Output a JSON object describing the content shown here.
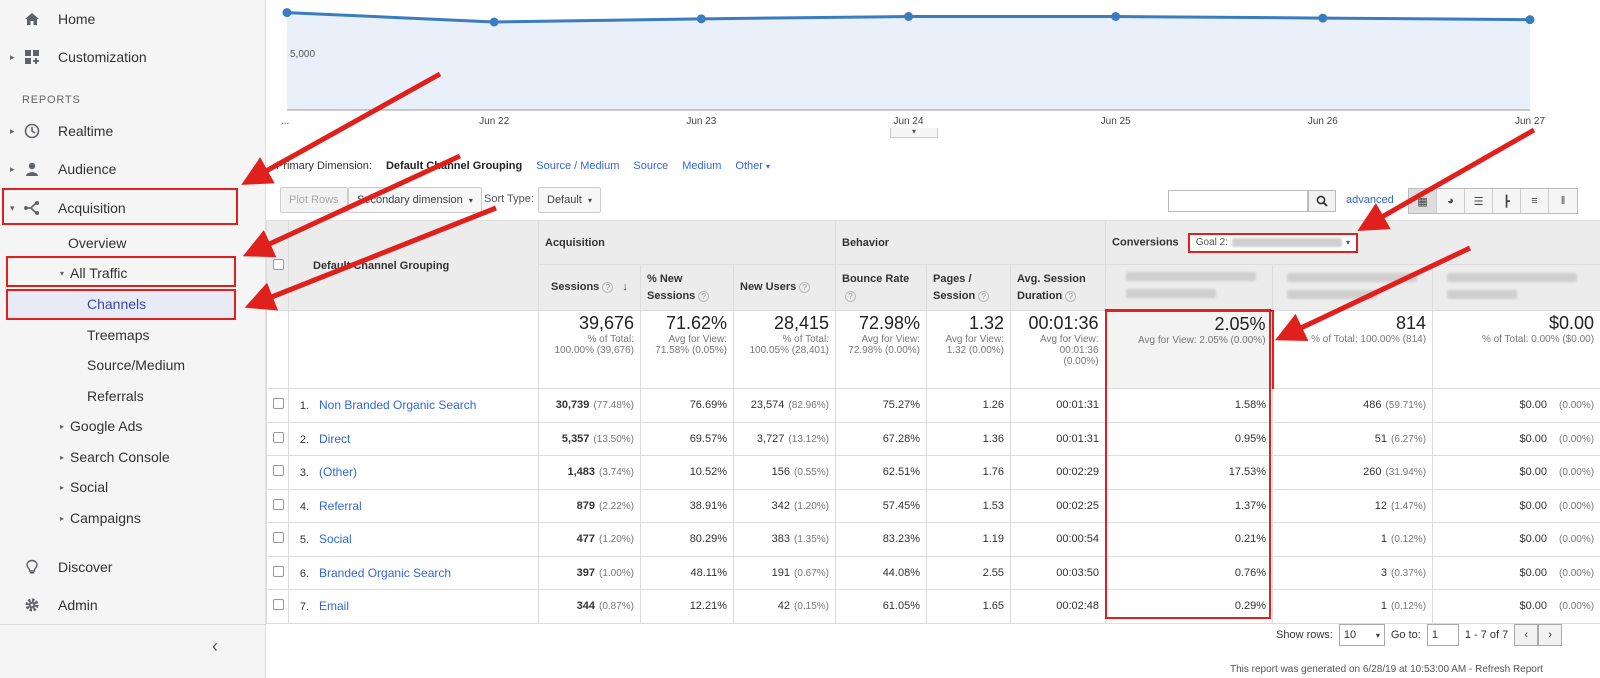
{
  "sidebar": {
    "home": "Home",
    "customization": "Customization",
    "reports_label": "REPORTS",
    "realtime": "Realtime",
    "audience": "Audience",
    "acquisition": "Acquisition",
    "overview": "Overview",
    "all_traffic": "All Traffic",
    "channels": "Channels",
    "treemaps": "Treemaps",
    "source_medium": "Source/Medium",
    "referrals": "Referrals",
    "google_ads": "Google Ads",
    "search_console": "Search Console",
    "social": "Social",
    "campaigns": "Campaigns",
    "discover": "Discover",
    "admin": "Admin"
  },
  "chart_data": {
    "type": "area",
    "x": [
      "...",
      "Jun 22",
      "Jun 23",
      "Jun 24",
      "Jun 25",
      "Jun 26",
      "Jun 27"
    ],
    "series": [
      {
        "values": [
          6200,
          5600,
          5800,
          5950,
          5950,
          5850,
          5750
        ]
      }
    ],
    "y_tick_label": "5,000",
    "ylim": [
      0,
      7000
    ],
    "grid": false,
    "colors": {
      "line": "#3b7cbf",
      "fill": "#e9f0f9"
    }
  },
  "dimension_bar": {
    "label": "Primary Dimension:",
    "current": "Default Channel Grouping",
    "links": [
      "Source / Medium",
      "Source",
      "Medium",
      "Other"
    ]
  },
  "toolbar": {
    "plot_rows": "Plot Rows",
    "secondary_dimension": "Secondary dimension",
    "sort_type_label": "Sort Type:",
    "sort_type_value": "Default",
    "advanced": "advanced"
  },
  "table": {
    "dimension_header": "Default Channel Grouping",
    "groups": {
      "acquisition": "Acquisition",
      "behavior": "Behavior",
      "conversions": "Conversions",
      "goal_select": "Goal 2:"
    },
    "columns": {
      "sessions": "Sessions",
      "new_sessions": "% New Sessions",
      "new_users": "New Users",
      "bounce_rate": "Bounce Rate",
      "pages_session": "Pages / Session",
      "avg_duration": "Avg. Session Duration"
    },
    "totals": {
      "sessions": {
        "value": "39,676",
        "sub1": "% of Total:",
        "sub2": "100.00% (39,676)"
      },
      "new_sessions": {
        "value": "71.62%",
        "sub1": "Avg for View:",
        "sub2": "71.58% (0.05%)"
      },
      "new_users": {
        "value": "28,415",
        "sub1": "% of Total:",
        "sub2": "100.05% (28,401)"
      },
      "bounce_rate": {
        "value": "72.98%",
        "sub1": "Avg for View:",
        "sub2": "72.98% (0.00%)"
      },
      "pages_session": {
        "value": "1.32",
        "sub1": "Avg for View:",
        "sub2": "1.32 (0.00%)"
      },
      "avg_duration": {
        "value": "00:01:36",
        "sub1": "Avg for View:",
        "sub2": "00:01:36",
        "sub3": "(0.00%)"
      },
      "conv_rate": {
        "value": "2.05%",
        "sub1": "Avg for View: 2.05% (0.00%)"
      },
      "completions": {
        "value": "814",
        "sub1": "% of Total: 100.00% (814)"
      },
      "goal_value": {
        "value": "$0.00",
        "sub1": "% of Total: 0.00% ($0.00)"
      }
    },
    "rows": [
      {
        "num": "1.",
        "name": "Non Branded Organic Search",
        "sessions": "30,739",
        "sessions_pct": "(77.48%)",
        "new_sessions": "76.69%",
        "new_users": "23,574",
        "new_users_pct": "(82.96%)",
        "bounce": "75.27%",
        "pages": "1.26",
        "duration": "00:01:31",
        "conv": "1.58%",
        "comp": "486",
        "comp_pct": "(59.71%)",
        "value": "$0.00",
        "value_pct": "(0.00%)"
      },
      {
        "num": "2.",
        "name": "Direct",
        "sessions": "5,357",
        "sessions_pct": "(13.50%)",
        "new_sessions": "69.57%",
        "new_users": "3,727",
        "new_users_pct": "(13.12%)",
        "bounce": "67.28%",
        "pages": "1.36",
        "duration": "00:01:31",
        "conv": "0.95%",
        "comp": "51",
        "comp_pct": "(6.27%)",
        "value": "$0.00",
        "value_pct": "(0.00%)"
      },
      {
        "num": "3.",
        "name": "(Other)",
        "sessions": "1,483",
        "sessions_pct": "(3.74%)",
        "new_sessions": "10.52%",
        "new_users": "156",
        "new_users_pct": "(0.55%)",
        "bounce": "62.51%",
        "pages": "1.76",
        "duration": "00:02:29",
        "conv": "17.53%",
        "comp": "260",
        "comp_pct": "(31.94%)",
        "value": "$0.00",
        "value_pct": "(0.00%)"
      },
      {
        "num": "4.",
        "name": "Referral",
        "sessions": "879",
        "sessions_pct": "(2.22%)",
        "new_sessions": "38.91%",
        "new_users": "342",
        "new_users_pct": "(1.20%)",
        "bounce": "57.45%",
        "pages": "1.53",
        "duration": "00:02:25",
        "conv": "1.37%",
        "comp": "12",
        "comp_pct": "(1.47%)",
        "value": "$0.00",
        "value_pct": "(0.00%)"
      },
      {
        "num": "5.",
        "name": "Social",
        "sessions": "477",
        "sessions_pct": "(1.20%)",
        "new_sessions": "80.29%",
        "new_users": "383",
        "new_users_pct": "(1.35%)",
        "bounce": "83.23%",
        "pages": "1.19",
        "duration": "00:00:54",
        "conv": "0.21%",
        "comp": "1",
        "comp_pct": "(0.12%)",
        "value": "$0.00",
        "value_pct": "(0.00%)"
      },
      {
        "num": "6.",
        "name": "Branded Organic Search",
        "sessions": "397",
        "sessions_pct": "(1.00%)",
        "new_sessions": "48.11%",
        "new_users": "191",
        "new_users_pct": "(0.67%)",
        "bounce": "44.08%",
        "pages": "2.55",
        "duration": "00:03:50",
        "conv": "0.76%",
        "comp": "3",
        "comp_pct": "(0.37%)",
        "value": "$0.00",
        "value_pct": "(0.00%)"
      },
      {
        "num": "7.",
        "name": "Email",
        "sessions": "344",
        "sessions_pct": "(0.87%)",
        "new_sessions": "12.21%",
        "new_users": "42",
        "new_users_pct": "(0.15%)",
        "bounce": "61.05%",
        "pages": "1.65",
        "duration": "00:02:48",
        "conv": "0.29%",
        "comp": "1",
        "comp_pct": "(0.12%)",
        "value": "$0.00",
        "value_pct": "(0.00%)"
      }
    ]
  },
  "pagination": {
    "show_rows_label": "Show rows:",
    "show_rows_value": "10",
    "goto_label": "Go to:",
    "goto_value": "1",
    "range": "1 - 7 of 7"
  },
  "footer": {
    "note": "This report was generated on 6/28/19 at 10:53:00 AM - Refresh Report"
  }
}
